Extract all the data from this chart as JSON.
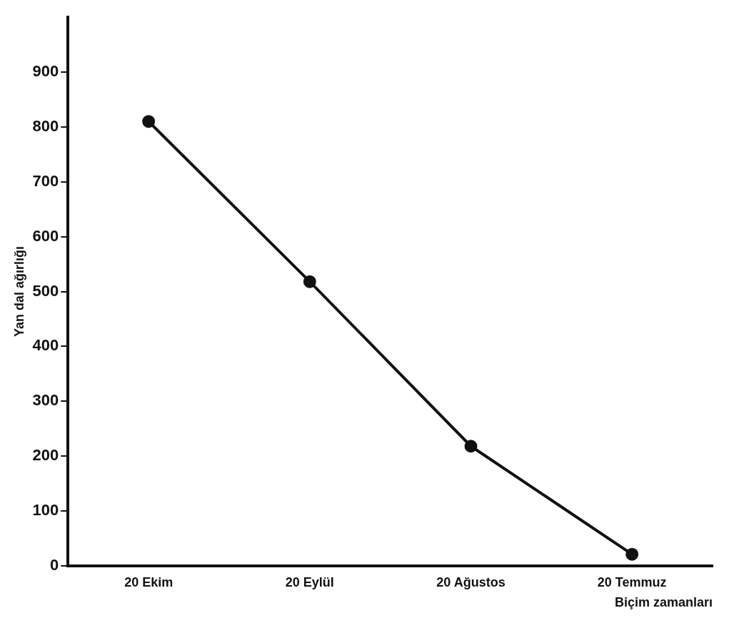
{
  "chart_data": {
    "type": "line",
    "xlabel": "Biçim zamanları",
    "ylabel": "Yan dal ağırlığı",
    "categories": [
      "20 Ekim",
      "20 Eylül",
      "20 Ağustos",
      "20 Temmuz"
    ],
    "series": [
      {
        "color": "#111111",
        "values": [
          810,
          518,
          218,
          21
        ]
      }
    ],
    "ylim": [
      0,
      1000
    ],
    "yticks": [
      0,
      100,
      200,
      300,
      400,
      500,
      600,
      700,
      800,
      900
    ],
    "grid": false,
    "legend": false,
    "marker": "circle",
    "line_style": "solid"
  }
}
